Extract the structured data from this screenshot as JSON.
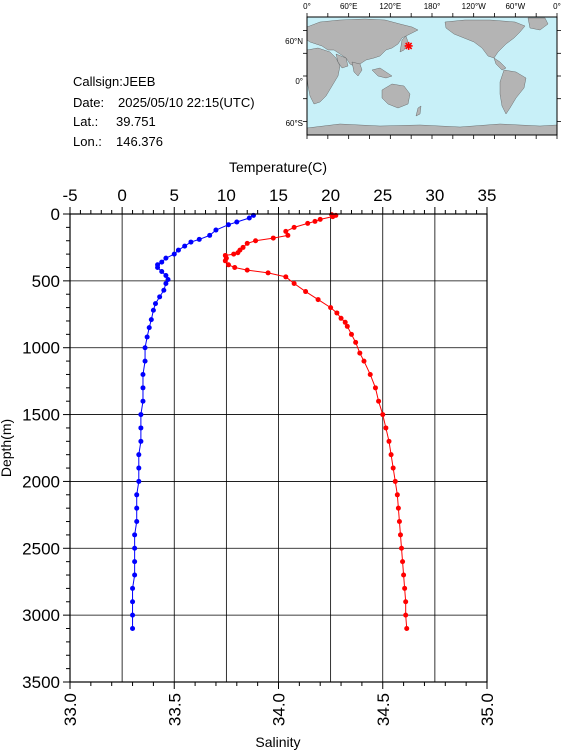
{
  "meta": {
    "callsign": "Callsign:JEEB",
    "date_label": "Date:",
    "date_value": "2025/05/10 22:15(UTC)",
    "lat_label": "Lat.:",
    "lat_value": "39.751",
    "lon_label": "Lon.:",
    "lon_value": "146.376"
  },
  "map": {
    "lon_labels": [
      "0°",
      "60°E",
      "120°E",
      "180°",
      "120°W",
      "60°W",
      "0°"
    ],
    "lat_labels": [
      "60°N",
      "0°",
      "60°S"
    ],
    "station": {
      "lon": 146.376,
      "lat": 39.751
    },
    "colors": {
      "ocean": "#c8f0f8",
      "land": "#b4b4b4",
      "marker": "#ff0000"
    }
  },
  "chart_data": {
    "type": "line",
    "title": "",
    "top_axis": {
      "label": "Temperature(C)",
      "range": [
        -5,
        35
      ],
      "ticks": [
        "-5",
        "0",
        "5",
        "10",
        "15",
        "20",
        "25",
        "30",
        "35"
      ]
    },
    "bottom_axis": {
      "label": "Salinity",
      "range": [
        33.0,
        35.0
      ],
      "ticks": [
        "33.0",
        "33.5",
        "34.0",
        "34.5",
        "35.0"
      ]
    },
    "y_axis": {
      "label": "Depth(m)",
      "range": [
        0,
        3500
      ],
      "inverted": true,
      "ticks": [
        "0",
        "500",
        "1000",
        "1500",
        "2000",
        "2500",
        "3000",
        "3500"
      ]
    },
    "grid": true,
    "series": [
      {
        "axis": "temperature",
        "color": "#ff0000",
        "points": [
          [
            20.1,
            5
          ],
          [
            20.5,
            10
          ],
          [
            20.2,
            20
          ],
          [
            19.0,
            40
          ],
          [
            18.5,
            55
          ],
          [
            17.8,
            70
          ],
          [
            16.5,
            100
          ],
          [
            15.7,
            130
          ],
          [
            15.9,
            160
          ],
          [
            14.5,
            180
          ],
          [
            12.8,
            200
          ],
          [
            12.0,
            220
          ],
          [
            11.6,
            250
          ],
          [
            11.3,
            270
          ],
          [
            11.1,
            290
          ],
          [
            10.7,
            300
          ],
          [
            9.9,
            310
          ],
          [
            10.0,
            330
          ],
          [
            9.9,
            350
          ],
          [
            10.2,
            380
          ],
          [
            10.8,
            400
          ],
          [
            12.0,
            420
          ],
          [
            14.0,
            440
          ],
          [
            15.7,
            470
          ],
          [
            16.5,
            520
          ],
          [
            17.6,
            580
          ],
          [
            18.8,
            640
          ],
          [
            20.0,
            700
          ],
          [
            20.6,
            740
          ],
          [
            21.0,
            780
          ],
          [
            21.4,
            810
          ],
          [
            21.6,
            840
          ],
          [
            22.0,
            900
          ],
          [
            22.4,
            960
          ],
          [
            22.8,
            1040
          ],
          [
            23.2,
            1100
          ],
          [
            23.8,
            1200
          ],
          [
            24.3,
            1300
          ],
          [
            24.6,
            1400
          ],
          [
            25.0,
            1500
          ],
          [
            25.3,
            1600
          ],
          [
            25.6,
            1700
          ],
          [
            25.8,
            1800
          ],
          [
            26.0,
            1900
          ],
          [
            26.2,
            2000
          ],
          [
            26.4,
            2100
          ],
          [
            26.5,
            2200
          ],
          [
            26.6,
            2300
          ],
          [
            26.7,
            2400
          ],
          [
            26.8,
            2500
          ],
          [
            26.9,
            2600
          ],
          [
            27.0,
            2700
          ],
          [
            27.1,
            2800
          ],
          [
            27.2,
            2900
          ],
          [
            27.2,
            3000
          ],
          [
            27.3,
            3100
          ]
        ]
      },
      {
        "axis": "salinity",
        "color": "#0000ff",
        "points": [
          [
            33.88,
            10
          ],
          [
            33.86,
            30
          ],
          [
            33.8,
            60
          ],
          [
            33.76,
            80
          ],
          [
            33.7,
            120
          ],
          [
            33.67,
            160
          ],
          [
            33.62,
            190
          ],
          [
            33.58,
            210
          ],
          [
            33.55,
            240
          ],
          [
            33.52,
            270
          ],
          [
            33.5,
            300
          ],
          [
            33.46,
            330
          ],
          [
            33.44,
            360
          ],
          [
            33.42,
            380
          ],
          [
            33.42,
            400
          ],
          [
            33.44,
            430
          ],
          [
            33.46,
            460
          ],
          [
            33.47,
            490
          ],
          [
            33.46,
            520
          ],
          [
            33.45,
            570
          ],
          [
            33.43,
            620
          ],
          [
            33.41,
            670
          ],
          [
            33.4,
            720
          ],
          [
            33.39,
            790
          ],
          [
            33.38,
            850
          ],
          [
            33.37,
            920
          ],
          [
            33.36,
            1000
          ],
          [
            33.36,
            1100
          ],
          [
            33.35,
            1200
          ],
          [
            33.35,
            1300
          ],
          [
            33.35,
            1400
          ],
          [
            33.34,
            1500
          ],
          [
            33.34,
            1600
          ],
          [
            33.34,
            1700
          ],
          [
            33.33,
            1800
          ],
          [
            33.33,
            1900
          ],
          [
            33.33,
            2000
          ],
          [
            33.32,
            2100
          ],
          [
            33.32,
            2200
          ],
          [
            33.32,
            2300
          ],
          [
            33.31,
            2400
          ],
          [
            33.31,
            2500
          ],
          [
            33.31,
            2600
          ],
          [
            33.31,
            2700
          ],
          [
            33.3,
            2800
          ],
          [
            33.3,
            2900
          ],
          [
            33.3,
            3000
          ],
          [
            33.3,
            3100
          ]
        ]
      }
    ]
  }
}
